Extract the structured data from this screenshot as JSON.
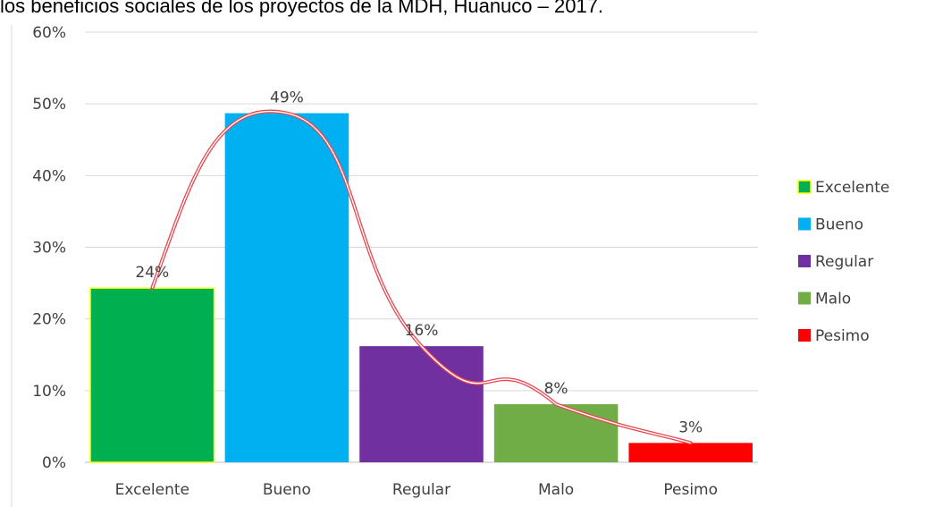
{
  "chart_data": {
    "type": "bar",
    "title": "los beneficios sociales de los proyectos de la MDH, Huanuco – 2017.",
    "xlabel": "",
    "ylabel": "",
    "categories": [
      "Excelente",
      "Bueno",
      "Regular",
      "Malo",
      "Pesimo"
    ],
    "values": [
      24.3,
      48.7,
      16.2,
      8.1,
      2.7
    ],
    "value_labels": [
      "24%",
      "49%",
      "16%",
      "8%",
      "3%"
    ],
    "colors": [
      "#00b050",
      "#00b0f0",
      "#7030a0",
      "#70ad47",
      "#ff0000"
    ],
    "ylim": [
      0,
      60
    ],
    "yticks": [
      0,
      10,
      20,
      30,
      40,
      50,
      60
    ],
    "ytick_labels": [
      "0%",
      "10%",
      "20%",
      "30%",
      "40%",
      "50%",
      "60%"
    ],
    "grid": true,
    "legend_position": "right",
    "legend": [
      "Excelente",
      "Bueno",
      "Regular",
      "Malo",
      "Pesimo"
    ],
    "overlay_curve": "red hand-drawn smooth curve through bar tops",
    "overlay_color": "#e8474f",
    "gridline_color": "#d9d9d9",
    "axis_color": "#bfbfbf",
    "first_bar_border_color": "#ffff00"
  }
}
